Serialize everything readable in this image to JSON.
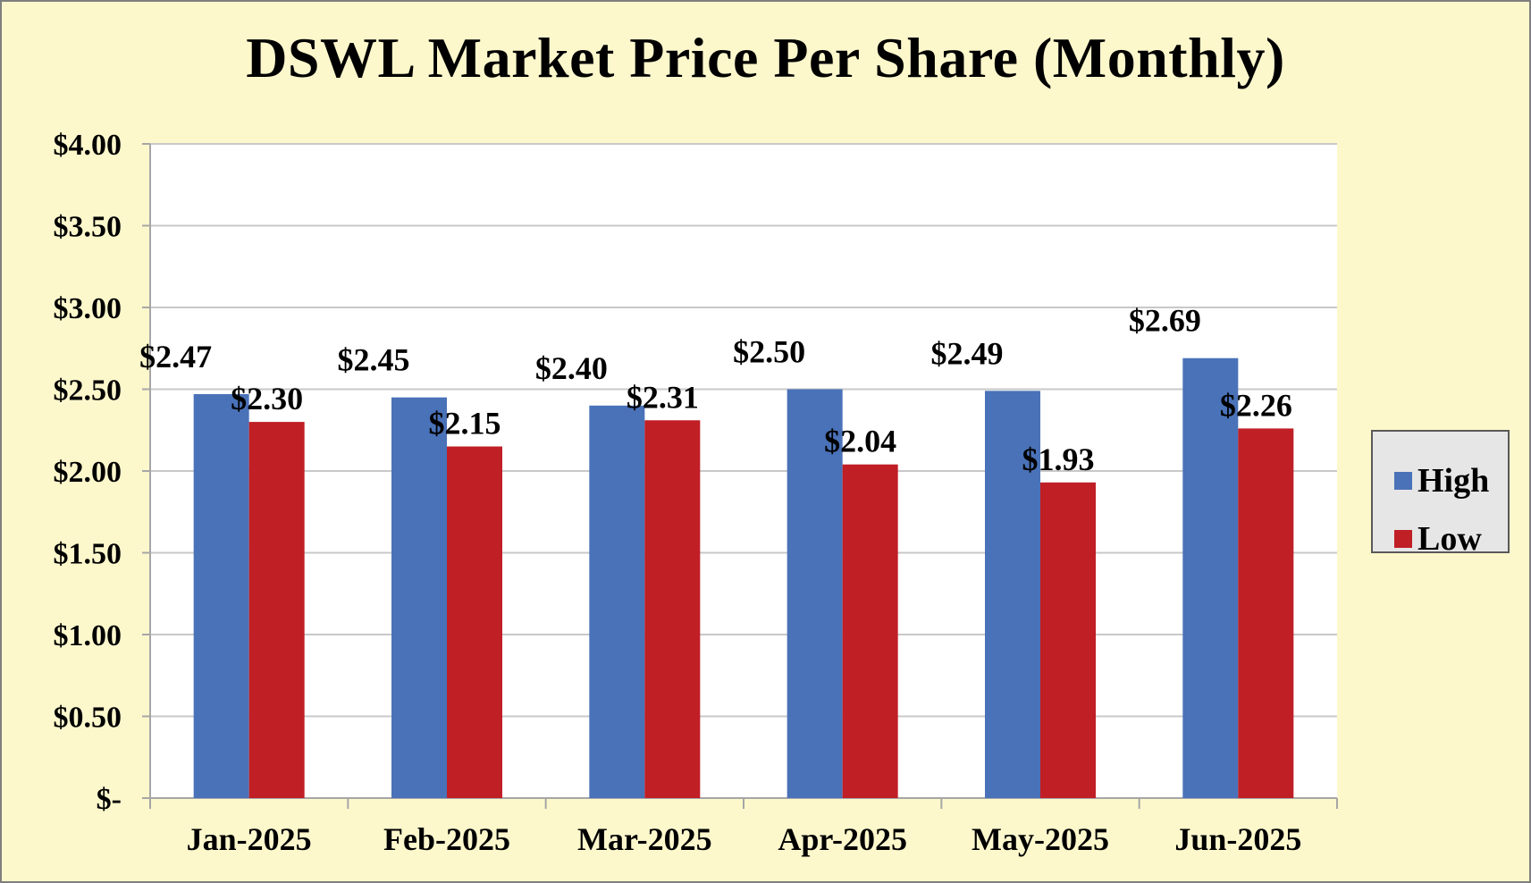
{
  "chart_data": {
    "type": "bar",
    "title": "DSWL Market Price Per Share (Monthly)",
    "xlabel": "",
    "ylabel": "",
    "categories": [
      "Jan-2025",
      "Feb-2025",
      "Mar-2025",
      "Apr-2025",
      "May-2025",
      "Jun-2025"
    ],
    "series": [
      {
        "name": "High",
        "color": "#4a72b8",
        "values": [
          2.47,
          2.45,
          2.4,
          2.5,
          2.49,
          2.69
        ],
        "labels": [
          "$2.47",
          "$2.45",
          "$2.40",
          "$2.50",
          "$2.49",
          "$2.69"
        ]
      },
      {
        "name": "Low",
        "color": "#c01f26",
        "values": [
          2.3,
          2.15,
          2.31,
          2.04,
          1.93,
          2.26
        ],
        "labels": [
          "$2.30",
          "$2.15",
          "$2.31",
          "$2.04",
          "$1.93",
          "$2.26"
        ]
      }
    ],
    "ylim": [
      0,
      4.0
    ],
    "yticks": [
      {
        "value": 0,
        "label": "$-"
      },
      {
        "value": 0.5,
        "label": "$0.50"
      },
      {
        "value": 1.0,
        "label": "$1.00"
      },
      {
        "value": 1.5,
        "label": "$1.50"
      },
      {
        "value": 2.0,
        "label": "$2.00"
      },
      {
        "value": 2.5,
        "label": "$2.50"
      },
      {
        "value": 3.0,
        "label": "$3.00"
      },
      {
        "value": 3.5,
        "label": "$3.50"
      },
      {
        "value": 4.0,
        "label": "$4.00"
      }
    ],
    "grid": true,
    "legend_position": "right",
    "background_color": "#fdf8cc",
    "plot_background_color": "#ffffff"
  }
}
